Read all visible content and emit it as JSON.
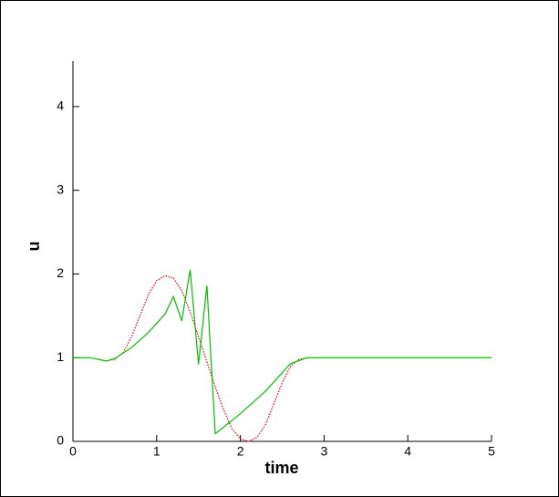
{
  "chart_data": {
    "type": "line",
    "x_label": "time",
    "y_label": "u",
    "xlim": [
      0,
      5
    ],
    "xticks": [
      0,
      1,
      2,
      3,
      4,
      5
    ],
    "ylim": [
      0,
      4.5
    ],
    "yticks": [
      0,
      1,
      2,
      3,
      4
    ],
    "series": [
      {
        "color": "#e00000",
        "style": "dotted",
        "x": [
          0.3,
          0.4,
          0.5,
          0.6,
          0.7,
          0.8,
          0.9,
          1.0,
          1.1,
          1.2,
          1.3,
          1.4,
          1.5,
          1.6,
          1.7,
          1.8,
          1.9,
          2.0,
          2.1,
          2.2,
          2.3,
          2.4,
          2.5,
          2.6,
          2.7,
          2.8
        ],
        "values": [
          0.98,
          0.96,
          0.98,
          1.06,
          1.25,
          1.5,
          1.75,
          1.92,
          1.98,
          1.95,
          1.8,
          1.55,
          1.25,
          0.95,
          0.65,
          0.38,
          0.15,
          0.03,
          0.0,
          0.05,
          0.2,
          0.45,
          0.7,
          0.9,
          0.98,
          1.0
        ]
      },
      {
        "color": "#00c000",
        "style": "solid",
        "x": [
          0,
          0.2,
          0.4,
          0.5,
          0.7,
          0.9,
          1.1,
          1.2,
          1.3,
          1.4,
          1.5,
          1.6,
          1.7,
          2.0,
          2.3,
          2.6,
          2.8,
          5
        ],
        "values": [
          1,
          1,
          0.96,
          0.99,
          1.12,
          1.3,
          1.52,
          1.73,
          1.44,
          2.05,
          0.92,
          1.86,
          0.09,
          0.33,
          0.6,
          0.93,
          1,
          1
        ]
      }
    ]
  }
}
